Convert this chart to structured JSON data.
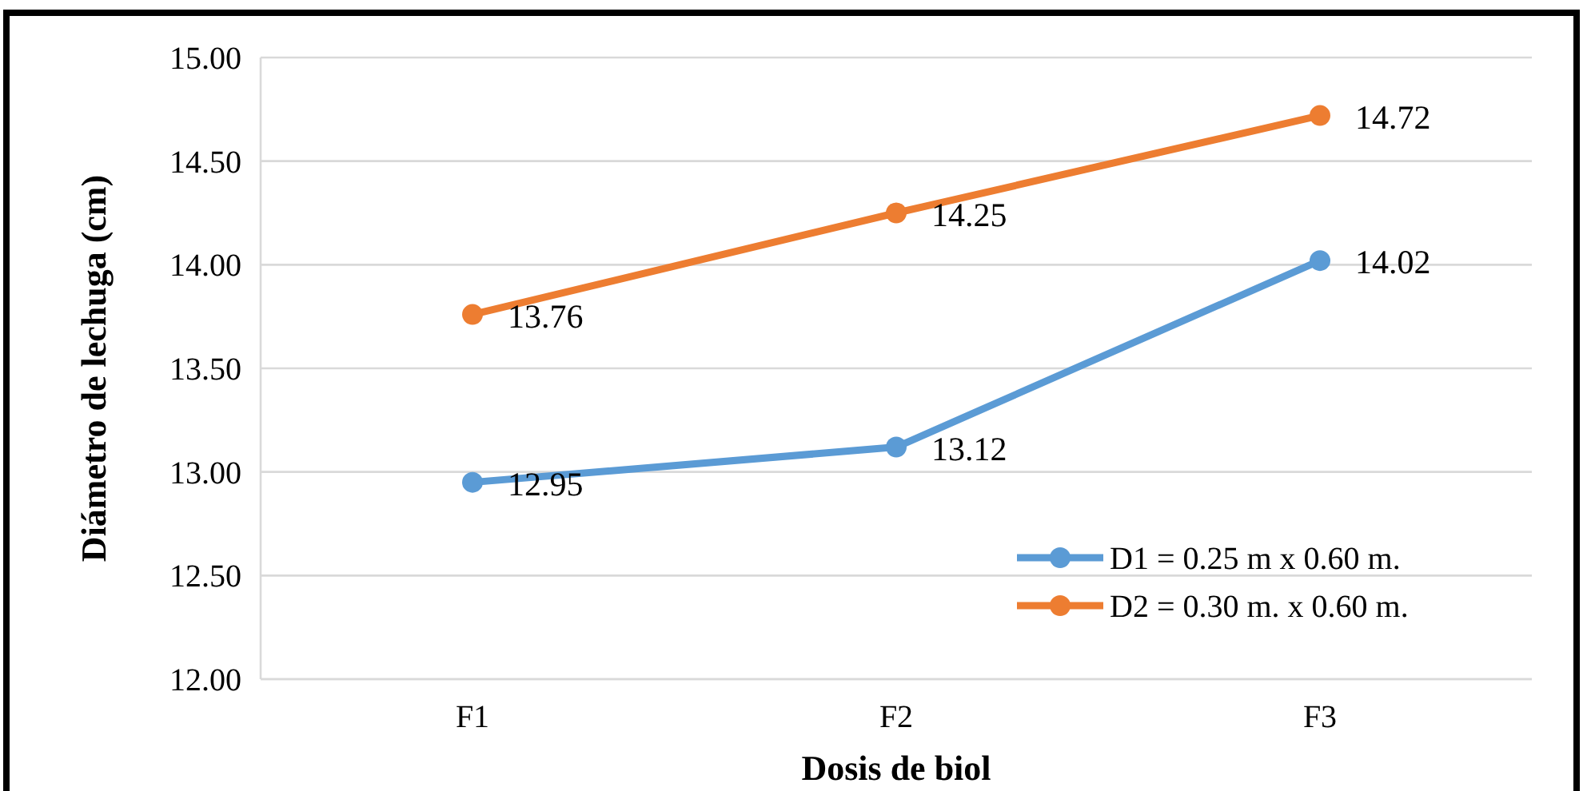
{
  "chart_data": {
    "type": "line",
    "xlabel": "Dosis de biol",
    "ylabel": "Diámetro de lechuga (cm)",
    "categories": [
      "F1",
      "F2",
      "F3"
    ],
    "series": [
      {
        "name": "D1 = 0.25 m x 0.60 m.",
        "color": "#5b9bd5",
        "values": [
          12.95,
          13.12,
          14.02
        ]
      },
      {
        "name": "D2 = 0.30 m. x 0.60 m.",
        "color": "#ed7d31",
        "values": [
          13.76,
          14.25,
          14.72
        ]
      }
    ],
    "ylim": [
      12,
      15
    ],
    "yticks": [
      {
        "value": 12,
        "label": "12.00"
      },
      {
        "value": 12.5,
        "label": "12.50"
      },
      {
        "value": 13,
        "label": "13.00"
      },
      {
        "value": 13.5,
        "label": "13.50"
      },
      {
        "value": 14,
        "label": "14.00"
      },
      {
        "value": 14.5,
        "label": "14.50"
      },
      {
        "value": 15,
        "label": "15.00"
      }
    ],
    "grid": "y",
    "legend": "bottom right",
    "marker": "circle",
    "line_style": "solid",
    "data_labels": true
  }
}
